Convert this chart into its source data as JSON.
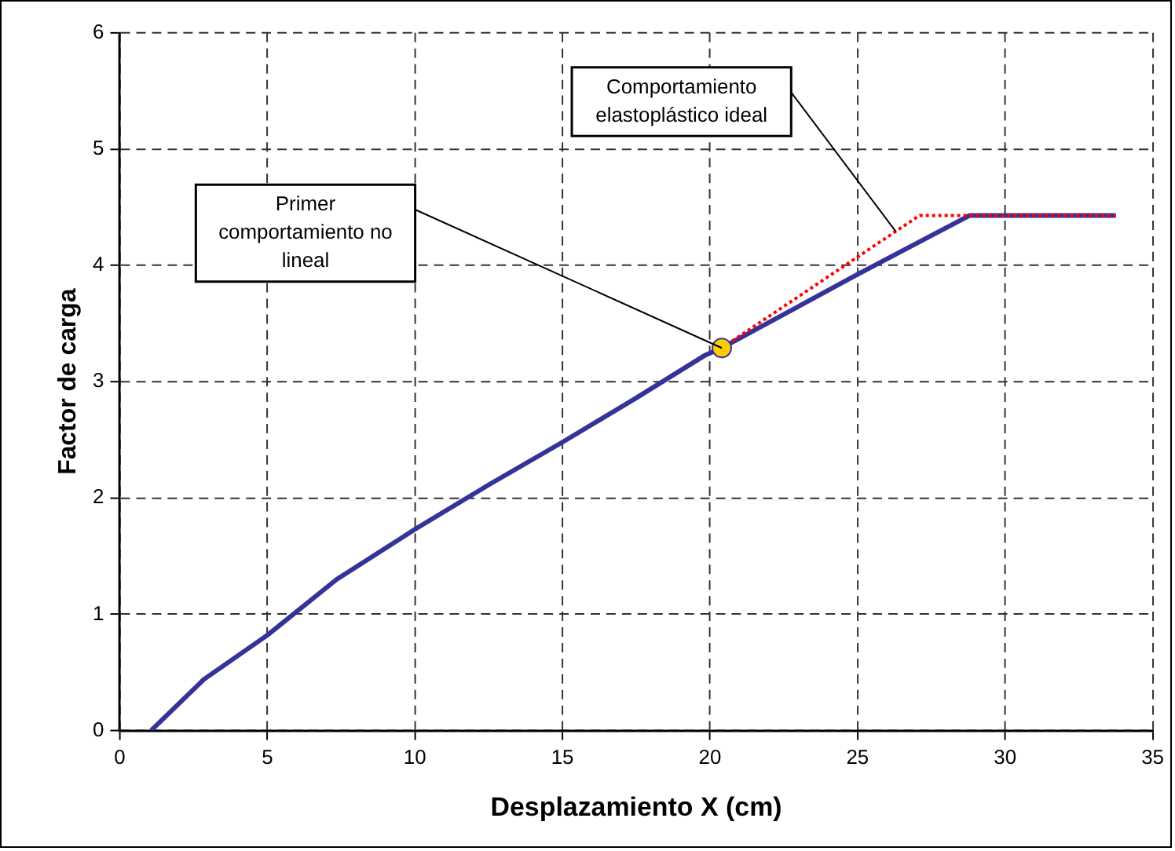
{
  "chart_data": {
    "type": "line",
    "xlabel": "Desplazamiento X (cm)",
    "ylabel": "Factor de carga",
    "xlim": [
      0,
      35
    ],
    "xticks": [
      0,
      5,
      10,
      15,
      20,
      25,
      30,
      35
    ],
    "ylim": [
      0,
      6
    ],
    "yticks": [
      0,
      1,
      2,
      3,
      4,
      5,
      6
    ],
    "grid": true,
    "legend": false,
    "marker": "none",
    "series": [
      {
        "color": "#ff0000",
        "line_style": "dotted",
        "x": [
          20.4,
          27.1,
          33.75
        ],
        "values": [
          3.29,
          4.43,
          4.43
        ]
      },
      {
        "color": "#333399",
        "line_style": "solid",
        "x": [
          1.06,
          2.85,
          5.0,
          7.35,
          10.0,
          12.55,
          15.0,
          17.5,
          19.85,
          20.4,
          24.98,
          28.8,
          33.75
        ],
        "values": [
          0,
          0.44,
          0.82,
          1.3,
          1.73,
          2.12,
          2.48,
          2.86,
          3.23,
          3.29,
          3.92,
          4.43,
          4.43
        ]
      },
      {
        "type": "scatter",
        "color": "#ffcc00",
        "marker": "circle",
        "x": [
          20.4
        ],
        "values": [
          3.29
        ]
      }
    ],
    "annotations": [
      {
        "text": "Primer comportamiento no lineal",
        "x": 20.4,
        "y": 3.29
      },
      {
        "text": "Comportamiento elastoplástico ideal",
        "x": 26.3,
        "y": 4.29
      }
    ]
  }
}
